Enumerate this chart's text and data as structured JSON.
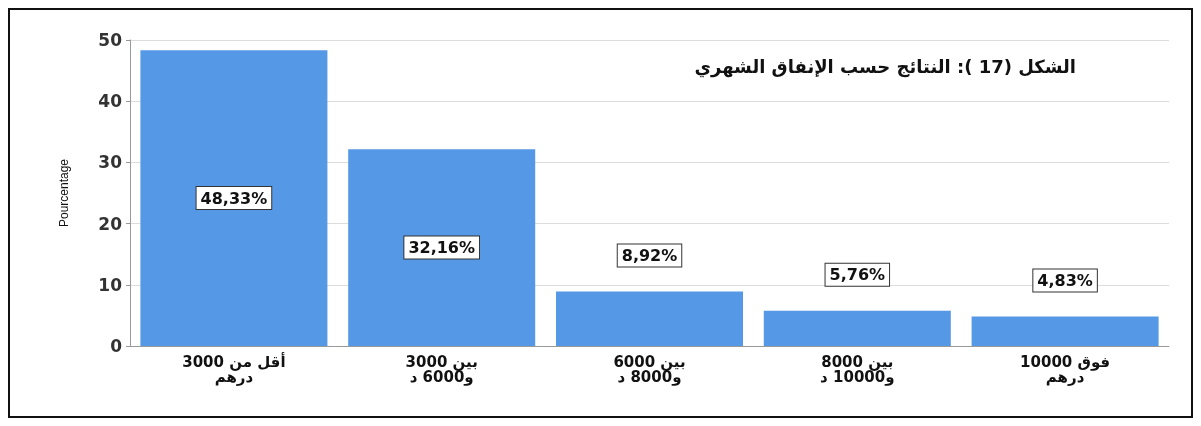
{
  "chart_data": {
    "type": "bar",
    "title": "الشكل (17 ): النتائج حسب الإنفاق الشهري",
    "ylabel": "Pourcentage",
    "categories": [
      "أقل من 3000\nدرهم",
      "بين 3000\nو6000 د",
      "بين 6000\nو8000 د",
      "بين 8000\nو10000 د",
      "فوق 10000\nدرهم"
    ],
    "values": [
      48.33,
      32.16,
      8.92,
      5.76,
      4.83
    ],
    "value_labels": [
      "48,33%",
      "32,16%",
      "8,92%",
      "5,76%",
      "4,83%"
    ],
    "color": "#5599e6",
    "ylim": [
      0,
      50
    ],
    "yticks": [
      0,
      10,
      20,
      30,
      40,
      50
    ],
    "grid": "y"
  }
}
